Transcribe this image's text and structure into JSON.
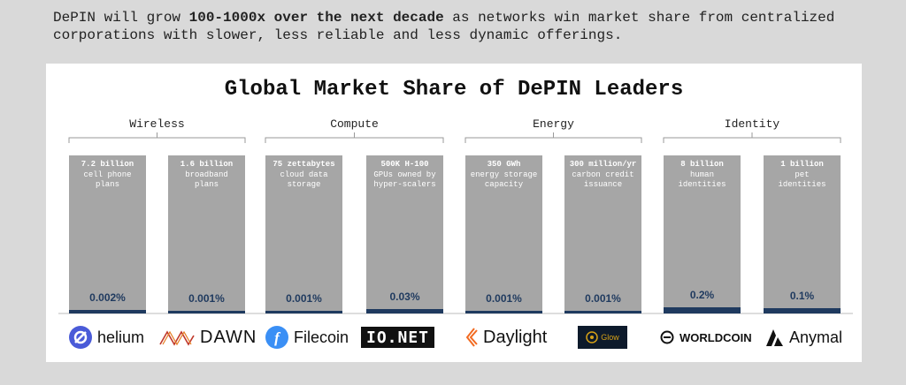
{
  "intro": {
    "pre": "DePIN will grow ",
    "bold": "100-1000x over the next decade",
    "post": " as networks win market share from centralized corporations with slower, less reliable and less dynamic offerings."
  },
  "colors": {
    "bar_bg": "#a6a6a6",
    "bar_fill": "#1f3a5f",
    "value_label": "#1f3a5f",
    "helium": "#4a5bd8",
    "filecoin": "#3a8ff5",
    "daylight": "#f26a21"
  },
  "chart_data": {
    "type": "bar",
    "title": "Global Market Share of DePIN Leaders",
    "groups": [
      "Wireless",
      "Compute",
      "Energy",
      "Identity"
    ],
    "categories": [
      {
        "group": "Wireless",
        "headline": "7.2 billion",
        "desc": [
          "cell phone",
          "plans"
        ],
        "value": 0.002,
        "label": "0.002%",
        "project": "helium"
      },
      {
        "group": "Wireless",
        "headline": "1.6 billion",
        "desc": [
          "broadband",
          "plans"
        ],
        "value": 0.001,
        "label": "0.001%",
        "project": "DAWN"
      },
      {
        "group": "Compute",
        "headline": "75 zettabytes",
        "desc": [
          "cloud data",
          "storage"
        ],
        "value": 0.001,
        "label": "0.001%",
        "project": "Filecoin"
      },
      {
        "group": "Compute",
        "headline": "500K H-100",
        "desc": [
          "GPUs owned by",
          "hyper-scalers"
        ],
        "value": 0.03,
        "label": "0.03%",
        "project": "IO.NET"
      },
      {
        "group": "Energy",
        "headline": "350 GWh",
        "desc": [
          "energy storage",
          "capacity"
        ],
        "value": 0.001,
        "label": "0.001%",
        "project": "Daylight"
      },
      {
        "group": "Energy",
        "headline": "300 million/yr",
        "desc": [
          "carbon credit",
          "issuance"
        ],
        "value": 0.001,
        "label": "0.001%",
        "project": "Glow"
      },
      {
        "group": "Identity",
        "headline": "8 billion",
        "desc": [
          "human",
          "identities"
        ],
        "value": 0.2,
        "label": "0.2%",
        "project": "WORLDCOIN"
      },
      {
        "group": "Identity",
        "headline": "1 billion",
        "desc": [
          "pet",
          "identities"
        ],
        "value": 0.1,
        "label": "0.1%",
        "project": "Anymal"
      }
    ],
    "unit": "%",
    "grid": false
  },
  "logos": [
    {
      "name": "helium",
      "icon": "helium-icon"
    },
    {
      "name": "DAWN",
      "icon": "dawn-icon"
    },
    {
      "name": "Filecoin",
      "icon": "filecoin-icon"
    },
    {
      "name": "IO.NET",
      "icon": "ionet-icon"
    },
    {
      "name": "Daylight",
      "icon": "daylight-icon"
    },
    {
      "name": "Glow",
      "icon": "glow-icon"
    },
    {
      "name": "WORLDCOIN",
      "icon": "worldcoin-icon"
    },
    {
      "name": "Anymal",
      "icon": "anymal-icon"
    }
  ]
}
